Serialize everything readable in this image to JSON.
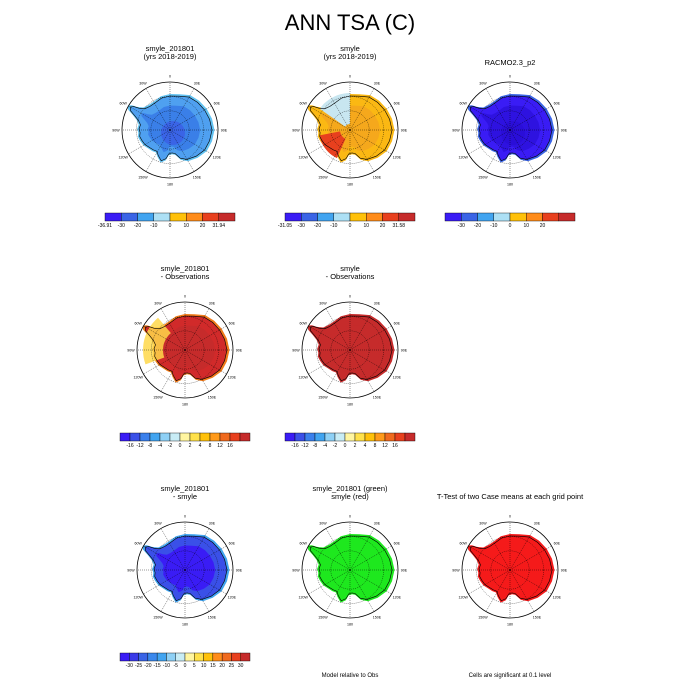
{
  "figure": {
    "title": "ANN TSA (C)"
  },
  "longitude_labels": [
    "0",
    "30E",
    "60E",
    "90E",
    "120E",
    "150E",
    "180",
    "150W",
    "120W",
    "90W",
    "60W",
    "30W"
  ],
  "notes": {
    "model_relative": "Model relative to Obs",
    "significance": "Cells are significant at 0.1 level"
  },
  "chart_data": [
    {
      "type": "heatmap",
      "id": "p1",
      "title_lines": [
        "smyle_201801",
        "(yrs 2018-2019)"
      ],
      "fill": "#4fa0f0",
      "interior": "#3a7fe8",
      "edge": "#62c2f2",
      "colorbar": {
        "colors": [
          "#3a1cf5",
          "#3a64e6",
          "#41a4f0",
          "#ade0f5",
          "#ffc10a",
          "#ff8c1a",
          "#e8401e",
          "#c62b2b"
        ],
        "labels": [
          "-36.91",
          "-30",
          "-20",
          "-10",
          "0",
          "10",
          "20",
          "31.94"
        ],
        "label_mode": "edges"
      }
    },
    {
      "type": "heatmap",
      "id": "p2",
      "title_lines": [
        "smyle",
        "(yrs 2018-2019)"
      ],
      "fill": "#fbb813",
      "interior": "#f5a81c",
      "edge": "#fbb813",
      "wedge": "#e8401e",
      "cold": "#c8e6f0",
      "colorbar": {
        "colors": [
          "#3a1cf5",
          "#3a64e6",
          "#41a4f0",
          "#ade0f5",
          "#ffc10a",
          "#ff8c1a",
          "#e8401e",
          "#c62b2b"
        ],
        "labels": [
          "-31.05",
          "-30",
          "-20",
          "-10",
          "0",
          "10",
          "20",
          "31.58"
        ],
        "label_mode": "edges"
      }
    },
    {
      "type": "heatmap",
      "id": "p3",
      "title_lines": [
        "RACMO2.3_p2"
      ],
      "fill": "#3a1cf5",
      "interior": "#2e12e0",
      "edge": "#3a64e6",
      "colorbar": {
        "colors": [
          "#3a1cf5",
          "#3a64e6",
          "#41a4f0",
          "#ade0f5",
          "#ffc10a",
          "#ff8c1a",
          "#e8401e",
          "#c62b2b"
        ],
        "labels": [
          "-30",
          "-20",
          "-10",
          "0",
          "10",
          "20"
        ],
        "label_mode": "inner"
      }
    },
    {
      "type": "heatmap",
      "id": "p4",
      "title_lines": [
        "smyle_201801",
        "- Observations"
      ],
      "fill": "#d12a2a",
      "interior": "#c62b2b",
      "edge": "#f07a1a",
      "peninsula": "#ffd84a",
      "colorbar": {
        "colors": [
          "#3a1cf5",
          "#3a50e8",
          "#3a80ec",
          "#41a4f0",
          "#8ed0f5",
          "#c8ecf5",
          "#fff5a0",
          "#ffe14a",
          "#ffc10a",
          "#ff9a1a",
          "#f06a1e",
          "#e8401e",
          "#c62b2b"
        ],
        "labels": [
          "-16",
          "-12",
          "-8",
          "-4",
          "-2",
          "0",
          "2",
          "4",
          "8",
          "12",
          "16"
        ],
        "label_mode": "inner"
      }
    },
    {
      "type": "heatmap",
      "id": "p5",
      "title_lines": [
        "smyle",
        "- Observations"
      ],
      "fill": "#c62b2b",
      "interior": "#c62b2b",
      "edge": "#c62b2b",
      "colorbar": {
        "colors": [
          "#3a1cf5",
          "#3a50e8",
          "#3a80ec",
          "#41a4f0",
          "#8ed0f5",
          "#c8ecf5",
          "#fff5a0",
          "#ffe14a",
          "#ffc10a",
          "#ff9a1a",
          "#f06a1e",
          "#e8401e",
          "#c62b2b"
        ],
        "labels": [
          "-16",
          "-12",
          "-8",
          "-4",
          "-2",
          "0",
          "2",
          "4",
          "8",
          "12",
          "16"
        ],
        "label_mode": "inner"
      }
    },
    {
      "type": "heatmap",
      "id": "p6",
      "title_lines": [
        "smyle_201801",
        "- smyle"
      ],
      "fill": "#3a50e8",
      "interior": "#3a1cf5",
      "edge": "#41a4f0",
      "colorbar": {
        "colors": [
          "#3a1cf5",
          "#3a3ae8",
          "#3a64e6",
          "#3a88ec",
          "#41a4f0",
          "#8ed0f5",
          "#c8ecf5",
          "#fff5a0",
          "#ffe14a",
          "#ffc10a",
          "#ff8c1a",
          "#f06a1e",
          "#e8401e",
          "#c62b2b"
        ],
        "labels": [
          "-30",
          "-25",
          "-20",
          "-15",
          "-10",
          "-5",
          "0",
          "5",
          "10",
          "15",
          "20",
          "25",
          "30"
        ],
        "label_mode": "inner"
      }
    },
    {
      "type": "heatmap",
      "id": "p7",
      "title_lines": [
        "smyle_201801 (green)",
        "smyle (red)"
      ],
      "fill": "#1ee81e",
      "interior": "#1ee81e",
      "edge": "#1ee81e"
    },
    {
      "type": "heatmap",
      "id": "p8",
      "title_lines": [
        "T-Test of two Case means at each grid point"
      ],
      "fill": "#f51a1a",
      "interior": "#f51a1a",
      "edge": "#f51a1a"
    }
  ]
}
